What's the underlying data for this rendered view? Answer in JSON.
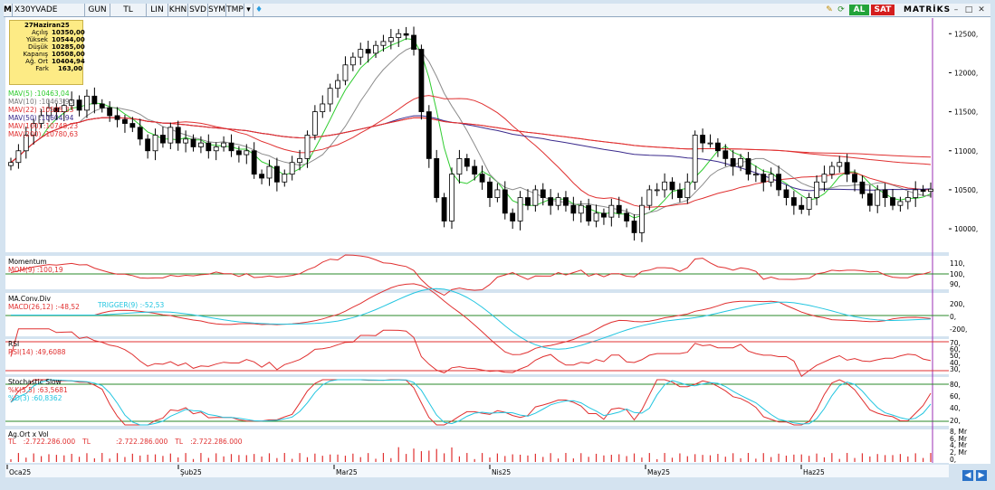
{
  "toolbar": {
    "menu_icon": "M",
    "symbol": "X30YVADE",
    "period": "GUN",
    "currency": "TL",
    "scale": "LIN",
    "khn": "KHN",
    "svd": "SVD",
    "sym": "SYM",
    "tmp": "TMP",
    "buy_label": "AL",
    "sell_label": "SAT",
    "brand": "MATRİKS",
    "icons": [
      "menu-icon",
      "dropdown-icon",
      "twitter-icon",
      "pencil-icon",
      "refresh-icon",
      "minimize-icon",
      "maximize-icon",
      "close-icon"
    ],
    "colors": {
      "buy": "#22a33a",
      "sell": "#d41e1e"
    }
  },
  "infobox": {
    "date": "27Haziran25",
    "rows": [
      {
        "label": "Açılış",
        "value": "10350,00"
      },
      {
        "label": "Yüksek",
        "value": "10544,00"
      },
      {
        "label": "Düşük",
        "value": "10285,00"
      },
      {
        "label": "Kapanış",
        "value": "10508,00"
      },
      {
        "label": "Ağ. Ort",
        "value": "10404,94"
      },
      {
        "label": "Fark",
        "value": "163,00"
      }
    ]
  },
  "legend": [
    {
      "name": "MAV(5)",
      "value": ":10463,04",
      "color": "#2fcc2f"
    },
    {
      "name": "MAV(10)",
      "value": ":10463,93",
      "color": "#8c8c8c"
    },
    {
      "name": "MAV(22)",
      "value": ":10505,33",
      "color": "#e03030"
    },
    {
      "name": "MAV(50)",
      "value": ":10604,94",
      "color": "#3a2a8c"
    },
    {
      "name": "MAV(100)",
      "value": ":10748,23",
      "color": "#e03030"
    },
    {
      "name": "MAV(200)",
      "value": ":10780,63",
      "color": "#e03030"
    }
  ],
  "subpanels": {
    "momentum": {
      "title": "Momentum",
      "name": "MOM(9)",
      "value": ":100,19"
    },
    "macd": {
      "title": "MA.Conv.Div",
      "name": "MACD(26,12)",
      "value": ":-48,52",
      "trigger_name": "TRIGGER(9)",
      "trigger_value": ":-52,53"
    },
    "rsi": {
      "title": "RSI",
      "name": "RSI(14)",
      "value": ":49,6088"
    },
    "stoch": {
      "title": "Stochastic Slow",
      "k_name": "%K(5,5)",
      "k_value": ":63,5681",
      "d_name": "%D(3)",
      "d_value": ":60,8362"
    },
    "volume": {
      "title": "Ag.Ort x Vol",
      "tl1": "TL",
      "v1": ":2.722.286.000",
      "tl2": "TL",
      "v2": ":2.722.286.000",
      "tl3": "TL",
      "v3": ":2.722.286.000"
    }
  },
  "axes": {
    "price_ticks": [
      "12500,",
      "12000,",
      "11500,",
      "11000,",
      "10500,",
      "10000,"
    ],
    "mom_ticks": [
      "110,",
      "100,",
      "90,"
    ],
    "macd_ticks": [
      "200,",
      "0,",
      "-200,"
    ],
    "rsi_ticks": [
      "70,",
      "60,",
      "50,",
      "40,",
      "30,"
    ],
    "stoch_ticks": [
      "80,",
      "60,",
      "40,",
      "20,"
    ],
    "vol_ticks": [
      "8, Mr",
      "6, Mr",
      "4, Mr",
      "2, Mr",
      "0,"
    ],
    "months": [
      "Oca25",
      "Şub25",
      "Mar25",
      "Nis25",
      "May25",
      "Haz25"
    ]
  },
  "chart_data": {
    "type": "candlestick",
    "symbol": "X30YVADE",
    "ylim": [
      9700,
      12700
    ],
    "months": [
      "Oca25",
      "Şub25",
      "Mar25",
      "Nis25",
      "May25",
      "Haz25"
    ],
    "approx_close": [
      10850,
      11000,
      11200,
      11350,
      11450,
      11550,
      11500,
      11580,
      11650,
      11520,
      11700,
      11600,
      11550,
      11450,
      11400,
      11350,
      11300,
      11150,
      11000,
      11200,
      11100,
      11300,
      11100,
      11150,
      11050,
      11100,
      11000,
      11050,
      11100,
      11000,
      10950,
      11000,
      10700,
      10650,
      10800,
      10600,
      10700,
      10850,
      10900,
      11200,
      11500,
      11600,
      11800,
      11900,
      12100,
      12200,
      12300,
      12250,
      12350,
      12400,
      12450,
      12500,
      12480,
      12300,
      11500,
      10900,
      10400,
      10100,
      10700,
      10900,
      10800,
      10700,
      10600,
      10400,
      10500,
      10200,
      10100,
      10400,
      10300,
      10500,
      10400,
      10300,
      10400,
      10300,
      10200,
      10300,
      10100,
      10200,
      10150,
      10300,
      10200,
      10100,
      9950,
      10300,
      10500,
      10500,
      10600,
      10500,
      10400,
      10600,
      11200,
      11100,
      11100,
      11000,
      10900,
      10800,
      10900,
      10700,
      10700,
      10600,
      10700,
      10500,
      10400,
      10300,
      10250,
      10400,
      10600,
      10700,
      10800,
      10850,
      10700,
      10600,
      10450,
      10300,
      10500,
      10400,
      10300,
      10350,
      10400,
      10500,
      10480,
      10508
    ],
    "mav5_last": 10463.04,
    "mav10_last": 10463.93,
    "mav22_last": 10505.33,
    "mav50_last": 10604.94,
    "mav100_last": 10748.23,
    "mav200_last": 10780.63,
    "momentum_last": 100.19,
    "macd_last": -48.52,
    "trigger_last": -52.53,
    "rsi_last": 49.6088,
    "stoch_k_last": 63.5681,
    "stoch_d_last": 60.8362
  }
}
